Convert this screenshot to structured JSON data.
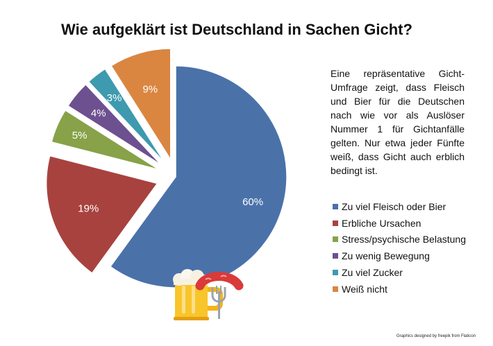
{
  "title": "Wie aufgeklärt ist Deutschland in Sachen Gicht?",
  "description": "Eine repräsentative Gicht-Umfrage zeigt, dass Fleisch und Bier für die Deutschen nach wie vor als Auslöser Nummer 1 für Gichtanfälle gelten. Nur etwa jeder Fünfte weiß, dass Gicht auch erblich bedingt ist.",
  "credit": "Graphics designed by freepik from Flaticon",
  "icons": [
    "beer-mug-icon",
    "sausage-fork-icon"
  ],
  "chart_data": {
    "type": "pie",
    "exploded": true,
    "legend_position": "right",
    "categories": [
      "Zu viel Fleisch oder Bier",
      "Erbliche Ursachen",
      "Stress/psychische Belastung",
      "Zu wenig Bewegung",
      "Zu viel Zucker",
      "Weiß nicht"
    ],
    "values": [
      60,
      19,
      5,
      4,
      3,
      9
    ],
    "labels": [
      "60%",
      "19%",
      "5%",
      "4%",
      "3%",
      "9%"
    ],
    "colors": [
      "#4a72a9",
      "#a8423f",
      "#87a248",
      "#6d5090",
      "#3e9aae",
      "#da8641"
    ]
  }
}
